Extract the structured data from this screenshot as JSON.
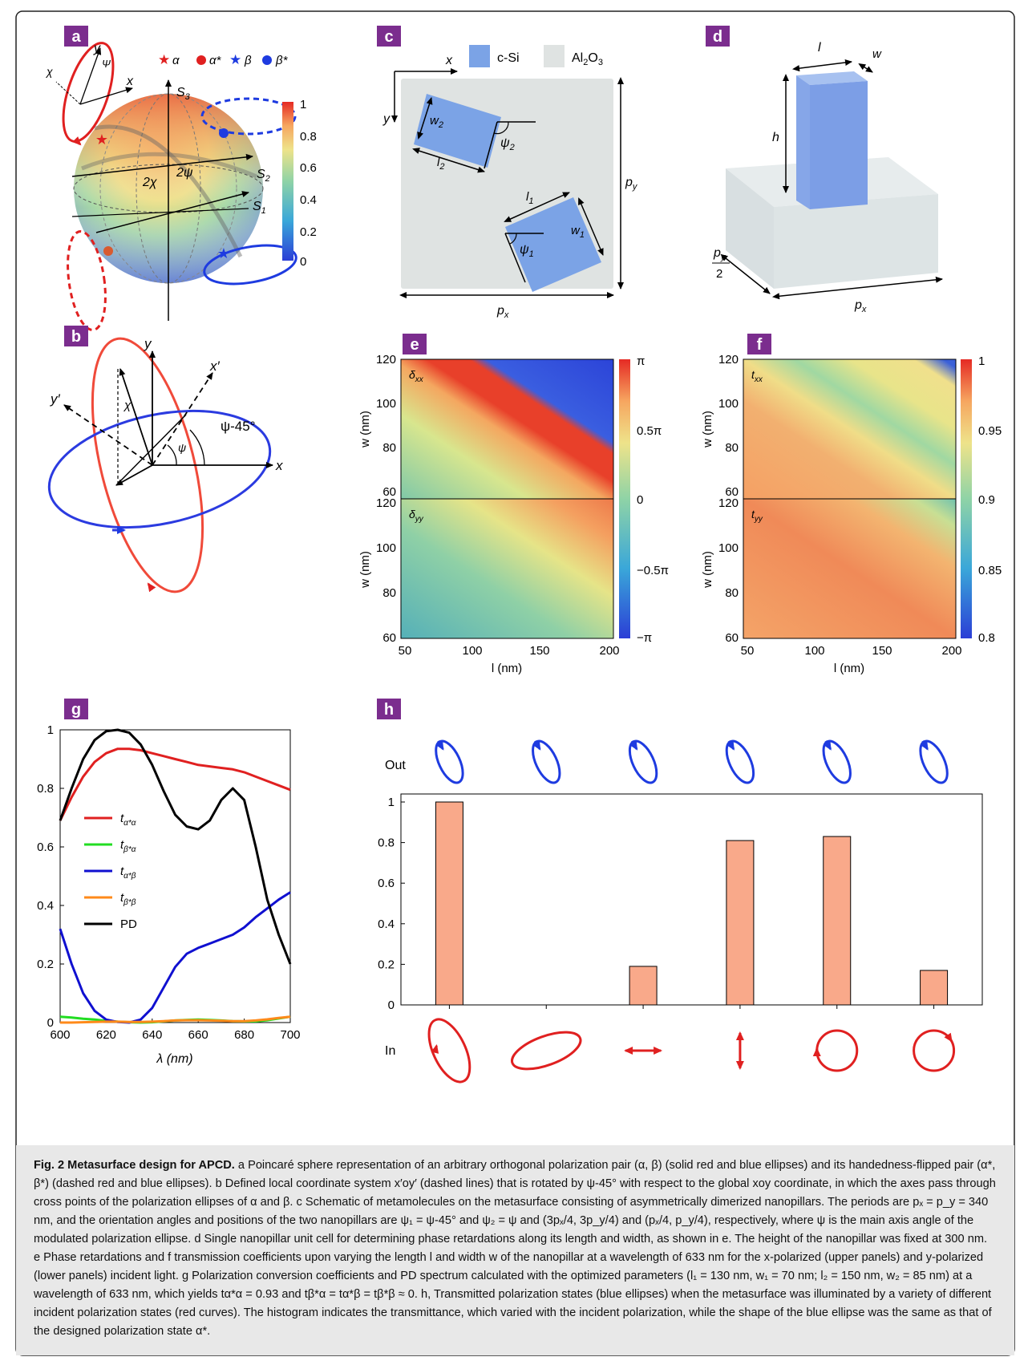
{
  "panel_labels": {
    "a": "a",
    "b": "b",
    "c": "c",
    "d": "d",
    "e": "e",
    "f": "f",
    "g": "g",
    "h": "h"
  },
  "panel_a": {
    "legend": [
      "α",
      "α*",
      "β",
      "β*"
    ],
    "colors": {
      "alpha": "#e02020",
      "beta": "#1e3be0"
    },
    "axes": {
      "x": "x",
      "y": "y",
      "chi": "χ",
      "psi": "Ψ",
      "s1": "S",
      "s1_sub": "1",
      "s2": "S",
      "s2_sub": "2",
      "s3": "S",
      "s3_sub": "3",
      "two_chi": "2χ",
      "two_psi": "2ψ"
    },
    "colorbar_ticks": [
      "1",
      "0.8",
      "0.6",
      "0.4",
      "0.2",
      "0"
    ]
  },
  "panel_b": {
    "x": "x",
    "y": "y",
    "xp": "x′",
    "yp": "y′",
    "chi": "χ",
    "psi": "ψ",
    "angle": "ψ-45°"
  },
  "panel_c": {
    "legend": [
      "c-Si",
      "Al",
      "2",
      "O",
      "3"
    ],
    "colors": {
      "si": "#7ba3e6",
      "al2o3": "#dfe3e2"
    },
    "labels": {
      "x": "x",
      "y": "y",
      "w2": "w",
      "w2s": "2",
      "l2": "l",
      "l2s": "2",
      "psi2": "ψ",
      "psi2s": "2",
      "l1": "l",
      "l1s": "1",
      "w1": "w",
      "w1s": "1",
      "psi1": "ψ",
      "psi1s": "1",
      "py": "p",
      "pys": "y",
      "px": "p",
      "pxs": "x"
    }
  },
  "panel_d": {
    "l": "l",
    "w": "w",
    "h": "h",
    "py": "p",
    "pys": "y",
    "two": "2",
    "px": "p",
    "pxs": "x"
  },
  "panel_e": {
    "ylabel": "w (nm)",
    "xlabel": "l (nm)",
    "upper_label": "δ",
    "upper_sub": "xx",
    "lower_label": "δ",
    "lower_sub": "yy",
    "yticks": [
      "120",
      "100",
      "80",
      "60"
    ],
    "xticks": [
      "50",
      "100",
      "150",
      "200"
    ],
    "colorbar_ticks": [
      "π",
      "0.5π",
      "0",
      "−0.5π",
      "−π"
    ]
  },
  "panel_f": {
    "ylabel": "w (nm)",
    "xlabel": "l (nm)",
    "upper_label": "t",
    "upper_sub": "xx",
    "lower_label": "t",
    "lower_sub": "yy",
    "yticks": [
      "120",
      "100",
      "80",
      "60"
    ],
    "xticks": [
      "50",
      "100",
      "150",
      "200"
    ],
    "colorbar_ticks": [
      "1",
      "0.95",
      "0.9",
      "0.85",
      "0.8"
    ]
  },
  "chart_data": [
    {
      "panel": "g",
      "type": "line",
      "xlabel": "λ (nm)",
      "ylabel": "",
      "xlim": [
        600,
        700
      ],
      "ylim": [
        0,
        1
      ],
      "xticks": [
        "600",
        "620",
        "640",
        "660",
        "680",
        "700"
      ],
      "yticks": [
        "0",
        "0.2",
        "0.4",
        "0.6",
        "0.8",
        "1"
      ],
      "legend_position": "center-left",
      "series": [
        {
          "name": "t",
          "sub": "α*α",
          "color": "#e02020",
          "x": [
            600,
            605,
            610,
            615,
            620,
            625,
            630,
            635,
            640,
            645,
            650,
            655,
            660,
            665,
            670,
            675,
            680,
            685,
            690,
            695,
            700
          ],
          "y": [
            0.69,
            0.77,
            0.84,
            0.89,
            0.92,
            0.935,
            0.935,
            0.93,
            0.92,
            0.91,
            0.9,
            0.89,
            0.88,
            0.875,
            0.87,
            0.865,
            0.855,
            0.84,
            0.825,
            0.81,
            0.795
          ]
        },
        {
          "name": "t",
          "sub": "β*α",
          "color": "#22dd22",
          "x": [
            600,
            605,
            610,
            615,
            620,
            625,
            630,
            635,
            640,
            645,
            650,
            655,
            660,
            665,
            670,
            675,
            680,
            685,
            690,
            695,
            700
          ],
          "y": [
            0.02,
            0.017,
            0.013,
            0.01,
            0.006,
            0.003,
            0.001,
            0.0,
            0.001,
            0.004,
            0.007,
            0.009,
            0.01,
            0.009,
            0.007,
            0.005,
            0.004,
            0.004,
            0.008,
            0.014,
            0.02
          ]
        },
        {
          "name": "t",
          "sub": "α*β",
          "color": "#1010d0",
          "x": [
            600,
            605,
            610,
            615,
            620,
            625,
            630,
            635,
            640,
            645,
            650,
            655,
            660,
            665,
            670,
            675,
            680,
            685,
            690,
            695,
            700
          ],
          "y": [
            0.32,
            0.2,
            0.1,
            0.04,
            0.01,
            0.002,
            0.0,
            0.01,
            0.05,
            0.12,
            0.19,
            0.235,
            0.255,
            0.27,
            0.285,
            0.3,
            0.325,
            0.36,
            0.39,
            0.42,
            0.445
          ]
        },
        {
          "name": "t",
          "sub": "β*β",
          "color": "#ff8a1a",
          "x": [
            600,
            605,
            610,
            615,
            620,
            625,
            630,
            635,
            640,
            645,
            650,
            655,
            660,
            665,
            670,
            675,
            680,
            685,
            690,
            695,
            700
          ],
          "y": [
            0.0,
            0.0,
            0.001,
            0.002,
            0.003,
            0.003,
            0.002,
            0.002,
            0.003,
            0.005,
            0.007,
            0.008,
            0.008,
            0.007,
            0.006,
            0.005,
            0.005,
            0.007,
            0.011,
            0.016,
            0.02
          ]
        },
        {
          "name": "PD",
          "sub": "",
          "color": "#000000",
          "x": [
            600,
            605,
            610,
            615,
            620,
            625,
            630,
            635,
            640,
            645,
            650,
            655,
            660,
            665,
            670,
            675,
            680,
            685,
            690,
            695,
            700
          ],
          "y": [
            0.69,
            0.8,
            0.9,
            0.965,
            0.995,
            1.0,
            0.99,
            0.95,
            0.88,
            0.79,
            0.71,
            0.67,
            0.66,
            0.69,
            0.76,
            0.8,
            0.76,
            0.6,
            0.42,
            0.3,
            0.2
          ]
        }
      ]
    },
    {
      "panel": "h",
      "type": "bar",
      "ylim": [
        0,
        1
      ],
      "yticks": [
        "0",
        "0.2",
        "0.4",
        "0.6",
        "0.8",
        "1"
      ],
      "categories": [
        "1",
        "2",
        "3",
        "4",
        "5",
        "6"
      ],
      "values": [
        1.0,
        0.0,
        0.19,
        0.81,
        0.83,
        0.17
      ],
      "bar_color": "#f9a98a",
      "out_label": "Out",
      "in_label": "In"
    }
  ],
  "caption": {
    "lead": "Fig. 2 Metasurface design for APCD.",
    "body": " a Poincaré sphere representation of an arbitrary orthogonal polarization pair (α, β) (solid red and blue ellipses) and its handedness-flipped pair (α*, β*) (dashed red and blue ellipses). b Defined local coordinate system x′oy′ (dashed lines) that is rotated by ψ-45° with respect to the global xoy coordinate, in which the axes pass through cross points of the polarization ellipses of α and β. c Schematic of metamolecules on the metasurface consisting of asymmetrically dimerized nanopillars. The periods are pₓ = p_y = 340 nm, and the orientation angles and positions of the two nanopillars are ψ₁ = ψ-45° and ψ₂ = ψ and (3pₓ/4, 3p_y/4) and (pₓ/4, p_y/4), respectively, where ψ is the main axis angle of the modulated polarization ellipse. d Single nanopillar unit cell for determining phase retardations along its length and width, as shown in e. The height of the nanopillar was fixed at 300 nm. e Phase retardations and f transmission coefficients upon varying the length l and width w of the nanopillar at a wavelength of 633 nm for the x-polarized (upper panels) and y-polarized (lower panels) incident light. g Polarization conversion coefficients and PD spectrum calculated with the optimized parameters (l₁ = 130 nm, w₁ = 70 nm; l₂ = 150 nm, w₂ = 85 nm) at a wavelength of 633 nm, which yields tα*α = 0.93 and tβ*α = tα*β = tβ*β ≈ 0. h, Transmitted polarization states (blue ellipses) when the metasurface was illuminated by a variety of different incident polarization states (red curves). The histogram indicates the transmittance, which varied with the incident polarization, while the shape of the blue ellipse was the same as that of the designed polarization state α*."
  }
}
